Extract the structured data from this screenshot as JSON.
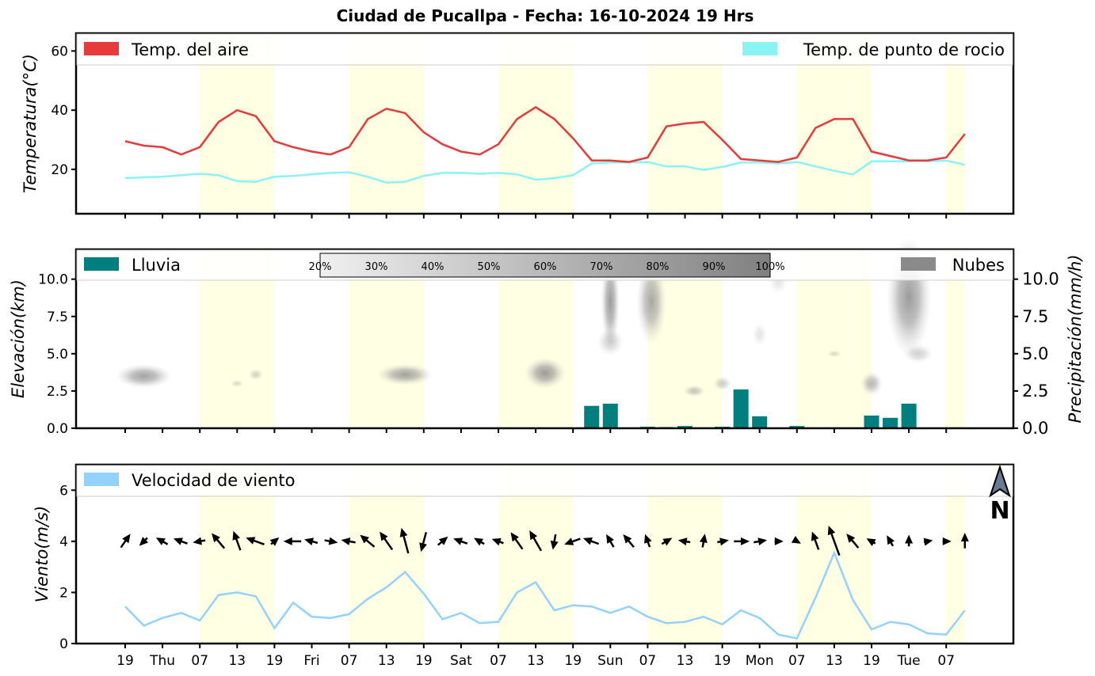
{
  "title": "Ciudad de Pucallpa   -   Fecha: 16-10-2024 19 Hrs",
  "colors": {
    "temp": "#e8393b",
    "dew": "#8af4f4",
    "rain": "#007f7f",
    "cloud": "#8a8a8a",
    "wind": "#93d2ff",
    "day": "#ffffe3"
  },
  "x_ticks": [
    "19",
    "Thu",
    "07",
    "13",
    "19",
    "Fri",
    "07",
    "13",
    "19",
    "Sat",
    "07",
    "13",
    "19",
    "Sun",
    "07",
    "13",
    "19",
    "Mon",
    "07",
    "13",
    "19",
    "Tue",
    "07"
  ],
  "panel1": {
    "ylabel": "Temperatura(°C)",
    "yticks": [
      "20",
      "40",
      "60"
    ],
    "ylim": [
      5,
      66
    ],
    "legend": {
      "temp": "Temp. del aire",
      "dew": "Temp. de punto de rocio"
    }
  },
  "panel2": {
    "ylabel_left": "Elevación(km)",
    "ylabel_right": "Precipitación(mm/h)",
    "yticks": [
      "0.0",
      "2.5",
      "5.0",
      "7.5",
      "10.0"
    ],
    "ylim": [
      0,
      12
    ],
    "legend": {
      "rain": "Lluvia",
      "cloud": "Nubes"
    },
    "colorbar": [
      "20%",
      "30%",
      "40%",
      "50%",
      "60%",
      "70%",
      "80%",
      "90%",
      "100%"
    ]
  },
  "panel3": {
    "ylabel": "Viento(m/s)",
    "yticks": [
      "0",
      "2",
      "4",
      "6"
    ],
    "ylim": [
      0,
      7
    ],
    "legend": {
      "wind": "Velocidad de viento"
    },
    "north": "N"
  },
  "chart_data": {
    "type": "line",
    "x_step_hours": 3,
    "day_bands": [
      [
        4,
        8
      ],
      [
        12,
        16
      ],
      [
        20,
        24
      ],
      [
        28,
        32
      ],
      [
        36,
        40
      ],
      [
        44,
        45
      ]
    ],
    "temperature": [
      29.5,
      28,
      27.5,
      25,
      27.5,
      36,
      40,
      38,
      29.5,
      27.5,
      26,
      25,
      27.5,
      37,
      40.5,
      39,
      32.5,
      28.5,
      26,
      25,
      28.5,
      37,
      41,
      37,
      30.5,
      23,
      23,
      22.5,
      24,
      34.5,
      35.5,
      36,
      30,
      23.5,
      23,
      22.5,
      24,
      34,
      37,
      37,
      26,
      24.5,
      23,
      23,
      24,
      32
    ],
    "dew_point": [
      17,
      17.3,
      17.5,
      18,
      18.5,
      18,
      16,
      15.8,
      17.5,
      17.8,
      18.3,
      18.8,
      19,
      17.5,
      15.5,
      15.8,
      17.8,
      18.8,
      18.8,
      18.5,
      18.8,
      18.3,
      16.5,
      17,
      18,
      22,
      22.3,
      22.3,
      22.5,
      21,
      21,
      19.8,
      20.8,
      22.3,
      22.3,
      22,
      22.5,
      21,
      19.5,
      18.3,
      22.7,
      22.7,
      22.7,
      22.7,
      23,
      21.5
    ],
    "rain_mm": [
      0,
      0,
      0.02,
      0,
      0,
      0,
      0,
      0,
      0,
      0,
      0,
      0,
      0,
      0,
      0,
      0,
      0,
      0,
      0,
      0,
      0,
      0,
      0,
      0,
      0,
      1.5,
      1.65,
      0,
      0.1,
      0.08,
      0.15,
      0,
      0.1,
      2.6,
      0.8,
      0,
      0.15,
      0.05,
      0,
      0.02,
      0.85,
      0.7,
      1.65,
      0,
      0,
      0
    ],
    "clouds": [
      {
        "x": 1,
        "y": 3.5,
        "dx": 1.5,
        "dy": 0.5,
        "c": 0.7
      },
      {
        "x": 6,
        "y": 3.0,
        "dx": 0.35,
        "dy": 0.15,
        "c": 0.3
      },
      {
        "x": 7,
        "y": 3.6,
        "dx": 0.4,
        "dy": 0.25,
        "c": 0.35
      },
      {
        "x": 15,
        "y": 3.6,
        "dx": 1.5,
        "dy": 0.45,
        "c": 0.7
      },
      {
        "x": 22.5,
        "y": 3.7,
        "dx": 1.1,
        "dy": 0.65,
        "c": 0.75
      },
      {
        "x": 26,
        "y": 8.5,
        "dx": 0.5,
        "dy": 2,
        "c": 0.75
      },
      {
        "x": 26,
        "y": 5.8,
        "dx": 0.7,
        "dy": 0.6,
        "c": 0.35
      },
      {
        "x": 28.2,
        "y": 8.5,
        "dx": 0.8,
        "dy": 1.8,
        "c": 0.65
      },
      {
        "x": 30.5,
        "y": 2.5,
        "dx": 0.6,
        "dy": 0.25,
        "c": 0.45
      },
      {
        "x": 32,
        "y": 3.0,
        "dx": 0.5,
        "dy": 0.3,
        "c": 0.4
      },
      {
        "x": 34,
        "y": 6.3,
        "dx": 0.4,
        "dy": 0.5,
        "c": 0.2
      },
      {
        "x": 35,
        "y": 9.8,
        "dx": 0.5,
        "dy": 0.5,
        "c": 0.2
      },
      {
        "x": 38,
        "y": 5.0,
        "dx": 0.4,
        "dy": 0.15,
        "c": 0.3
      },
      {
        "x": 40,
        "y": 3.0,
        "dx": 0.6,
        "dy": 0.5,
        "c": 0.55
      },
      {
        "x": 42,
        "y": 8.8,
        "dx": 1.2,
        "dy": 2.5,
        "c": 0.75
      },
      {
        "x": 42.5,
        "y": 5.0,
        "dx": 0.8,
        "dy": 0.4,
        "c": 0.35
      }
    ],
    "wind_speed": [
      1.45,
      0.7,
      1.0,
      1.2,
      0.9,
      1.9,
      2.0,
      1.85,
      0.6,
      1.6,
      1.05,
      1.0,
      1.15,
      1.75,
      2.2,
      2.8,
      1.95,
      0.95,
      1.2,
      0.8,
      0.85,
      2.0,
      2.4,
      1.3,
      1.5,
      1.45,
      1.2,
      1.45,
      1.05,
      0.8,
      0.85,
      1.05,
      0.75,
      1.3,
      1.0,
      0.35,
      0.2,
      1.8,
      3.55,
      1.7,
      0.55,
      0.85,
      0.75,
      0.4,
      0.35,
      1.3
    ],
    "wind_dir_deg": [
      215,
      45,
      120,
      110,
      80,
      140,
      160,
      110,
      230,
      90,
      105,
      280,
      100,
      130,
      145,
      165,
      15,
      230,
      110,
      120,
      110,
      145,
      150,
      10,
      70,
      110,
      150,
      140,
      160,
      240,
      100,
      190,
      260,
      270,
      260,
      270,
      300,
      160,
      160,
      140,
      120,
      150,
      180,
      260,
      270,
      180
    ]
  }
}
